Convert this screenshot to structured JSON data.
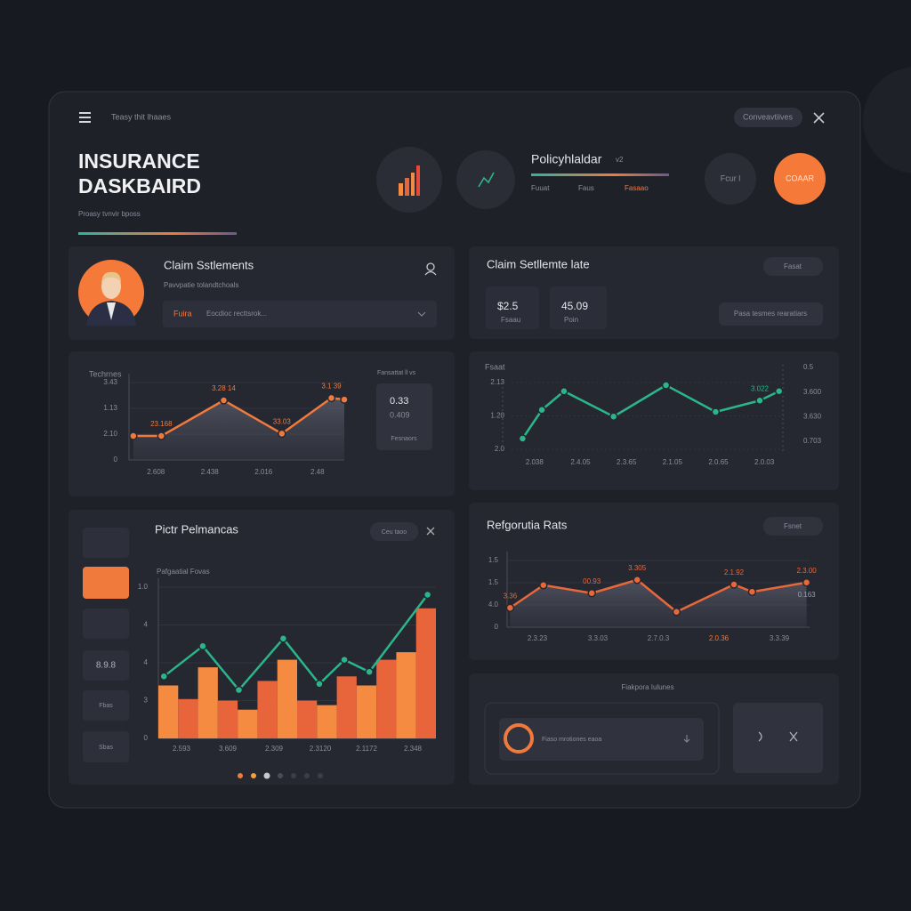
{
  "header": {
    "menu_text": "Teasy thit lhaaes",
    "button": "Conveavtiives",
    "title_line1": "INSURANCE",
    "title_line2": "DASKBAIRD",
    "subtitle": "Proasy tvnvir bposs"
  },
  "policy": {
    "title": "Policyhlaldar",
    "tag": "v2",
    "labels": [
      "Fuuat",
      "Faus",
      "Fasaao"
    ],
    "circle_button": "Fcur l",
    "action_button": "COAAR"
  },
  "claim_card": {
    "title": "Claim Sstlements",
    "subtitle": "Pavvpatie tolandtchoals",
    "input_tag": "Fuira",
    "input_placeholder": "Eocdioc recttsrok..."
  },
  "rate_card": {
    "title": "Claim Setllemte late",
    "button": "Fasat",
    "stats": [
      {
        "value": "$2.5",
        "label": "Fsaau"
      },
      {
        "value": "45.09",
        "label": "Poin"
      }
    ],
    "action": "Pasa tesmes rearatiars"
  },
  "chart_data": [
    {
      "type": "line",
      "area": true,
      "title": "Techrnes",
      "note": "Fansattat ll vs",
      "xlim": [
        0,
        100
      ],
      "ylim": [
        0,
        100
      ],
      "y_labels": [
        "3.43",
        "1.13",
        "2.10",
        "0"
      ],
      "x_labels": [
        "2.608",
        "2.438",
        "2.016",
        "2.48"
      ],
      "series": [
        {
          "color": "#f07a3c",
          "x": [
            2,
            15,
            44,
            71,
            94,
            100
          ],
          "values": [
            31,
            31,
            77,
            34,
            80,
            78
          ]
        }
      ],
      "annotations": [
        {
          "text": "3.28 14",
          "point": 2
        },
        {
          "text": "3.1 39",
          "point": 4
        },
        {
          "text": "23.168",
          "point": 1
        },
        {
          "text": "33.03",
          "point": 3
        }
      ],
      "side_stats": [
        "0.33",
        "0.409",
        "Fesnaors"
      ]
    },
    {
      "type": "line",
      "area": false,
      "title": "Fsaat",
      "xlim": [
        0,
        100
      ],
      "ylim": [
        0,
        100
      ],
      "y_labels": [
        "2.13",
        "1.20",
        "2.0"
      ],
      "y2_labels": [
        "0.5",
        "3.600",
        "3.630",
        "0.703"
      ],
      "x_labels": [
        "2.038",
        "2.4.05",
        "2.3.65",
        "2.1.05",
        "2.0.65",
        "2.0.03"
      ],
      "series": [
        {
          "color": "#2bb58a",
          "x": [
            4,
            11,
            19,
            37,
            56,
            74,
            90,
            97
          ],
          "values": [
            16,
            59,
            87,
            49,
            96,
            56,
            73,
            87
          ]
        }
      ],
      "annotations": [
        {
          "text": "3.022",
          "point": 6
        }
      ]
    },
    {
      "type": "combo",
      "title": "Pictr Pelmancas",
      "button": "Ceu taoo",
      "subtitle": "Pafgaatial Fovas",
      "xlim": [
        0,
        100
      ],
      "ylim": [
        0,
        100
      ],
      "y_labels": [
        "1.0",
        "4",
        "4",
        "3",
        "0"
      ],
      "x_labels": [
        "2.593",
        "3.609",
        "2.309",
        "2.3120",
        "2.1172",
        "2.348"
      ],
      "side_labels": [
        "8.9.8",
        "Fbas",
        "Sbas"
      ],
      "series": [
        {
          "type": "bar",
          "color": "#f58b40",
          "alt_color": "#e8643a",
          "values": [
            35,
            26,
            47,
            25,
            19,
            38,
            52,
            25,
            22,
            41,
            35,
            52,
            57,
            86
          ]
        },
        {
          "type": "line",
          "color": "#2bb58a",
          "x": [
            2,
            16,
            29,
            45,
            58,
            67,
            76,
            97
          ],
          "values": [
            41,
            61,
            32,
            66,
            36,
            52,
            44,
            95
          ]
        }
      ]
    },
    {
      "type": "line",
      "area": true,
      "title": "Refgorutia Rats",
      "button": "Fsnet",
      "xlim": [
        0,
        100
      ],
      "ylim": [
        0,
        100
      ],
      "y_labels": [
        "1.5",
        "1.5",
        "4.0",
        "0"
      ],
      "x_labels": [
        "2.3.23",
        "3.3.03",
        "2.7.0.3",
        "2.0.36",
        "3.3.39"
      ],
      "x_label_highlight": 3,
      "series": [
        {
          "color": "#e8683a",
          "x": [
            1,
            12,
            28,
            43,
            56,
            75,
            81,
            99
          ],
          "values": [
            29,
            63,
            51,
            71,
            23,
            64,
            53,
            67
          ]
        }
      ],
      "annotations": [
        {
          "text": "3.305",
          "point": 3
        },
        {
          "text": "2.1.92",
          "point": 5
        },
        {
          "text": "2.3.00",
          "point": 7
        },
        {
          "text": "00.93",
          "point": 2
        },
        {
          "text": "3.36",
          "point": 0
        },
        {
          "text": "0.163",
          "point": 7
        }
      ]
    }
  ],
  "feedback_card": {
    "title": "Fiakpora Iulunes",
    "item": "Fiaso mrotiones eaoa"
  }
}
